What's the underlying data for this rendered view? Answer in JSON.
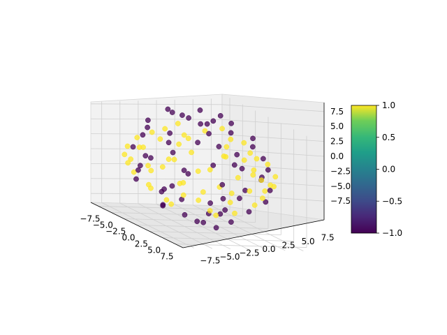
{
  "chart_data": {
    "type": "scatter",
    "projection": "3d",
    "title": "",
    "xlabel": "",
    "ylabel": "",
    "zlabel": "",
    "xlim": [
      -9,
      9
    ],
    "ylim": [
      -9,
      9
    ],
    "zlim": [
      -9,
      9
    ],
    "x_ticks": [
      "−7.5",
      "−5.0",
      "−2.5",
      "0.0",
      "2.5",
      "5.0",
      "7.5"
    ],
    "y_ticks": [
      "−7.5",
      "−5.0",
      "−2.5",
      "0.0",
      "2.5",
      "5.0",
      "7.5"
    ],
    "z_ticks": [
      "−7.5",
      "−5.0",
      "−2.5",
      "0.0",
      "2.5",
      "5.0",
      "7.5"
    ],
    "x_tick_values": [
      -7.5,
      -5,
      -2.5,
      0,
      2.5,
      5,
      7.5
    ],
    "y_tick_values": [
      -7.5,
      -5,
      -2.5,
      0,
      2.5,
      5,
      7.5
    ],
    "z_tick_values": [
      -7.5,
      -5,
      -2.5,
      0,
      2.5,
      5,
      7.5
    ],
    "grid": true,
    "view": {
      "elev": 10,
      "azim": -55
    },
    "colormap": "viridis",
    "colorbar": {
      "range": [
        -1,
        1
      ],
      "ticks": [
        1.0,
        0.5,
        0.0,
        -0.5,
        -1.0
      ],
      "tick_labels": [
        "1.0",
        "0.5",
        "0.0",
        "−0.5",
        "−1.0"
      ]
    },
    "color_values": [
      -1,
      1
    ],
    "colors": {
      "low": "#440154",
      "high": "#fde725"
    },
    "series": [
      {
        "color_value": -1,
        "description_points": [
          [
            -5.2,
            1.1,
            7.8
          ],
          [
            -3.9,
            -2.4,
            8.2
          ],
          [
            -1.2,
            3.3,
            8.6
          ],
          [
            0.8,
            -1.9,
            8.9
          ],
          [
            2.6,
            2.1,
            8.1
          ],
          [
            4.4,
            -0.8,
            7.4
          ],
          [
            -6.1,
            -1.5,
            6.6
          ],
          [
            -4.1,
            4.6,
            6.3
          ],
          [
            -1.8,
            -5.2,
            6.9
          ],
          [
            1.3,
            5.4,
            6.1
          ],
          [
            3.7,
            -4.3,
            6.4
          ],
          [
            5.9,
            1.9,
            5.7
          ],
          [
            -7.2,
            2.5,
            4.1
          ],
          [
            -5.6,
            -4.8,
            3.9
          ],
          [
            -2.7,
            6.3,
            4.4
          ],
          [
            0.4,
            -6.6,
            4.0
          ],
          [
            2.9,
            6.1,
            3.6
          ],
          [
            5.3,
            -4.6,
            3.8
          ],
          [
            7.1,
            0.6,
            3.3
          ],
          [
            -7.6,
            -0.7,
            1.6
          ],
          [
            -6.3,
            5.1,
            1.2
          ],
          [
            -3.4,
            -7.1,
            1.4
          ],
          [
            -0.6,
            7.4,
            1.8
          ],
          [
            2.4,
            -7.3,
            1.1
          ],
          [
            4.8,
            5.9,
            1.5
          ],
          [
            6.9,
            -3.2,
            1.0
          ],
          [
            7.7,
            2.7,
            0.4
          ],
          [
            -7.4,
            1.9,
            -0.9
          ],
          [
            -5.9,
            -5.6,
            -1.3
          ],
          [
            -2.3,
            7.2,
            -1.1
          ],
          [
            0.9,
            -7.5,
            -0.6
          ],
          [
            3.6,
            6.7,
            -1.4
          ],
          [
            6.2,
            -4.9,
            -0.8
          ],
          [
            7.5,
            0.2,
            -1.7
          ],
          [
            -6.8,
            -2.8,
            -3.1
          ],
          [
            -4.7,
            5.8,
            -3.4
          ],
          [
            -1.5,
            -6.9,
            -3.6
          ],
          [
            1.7,
            6.8,
            -3.0
          ],
          [
            4.2,
            -5.7,
            -3.3
          ],
          [
            6.5,
            3.5,
            -2.9
          ],
          [
            -5.5,
            1.4,
            -5.2
          ],
          [
            -3.1,
            -5.0,
            -5.6
          ],
          [
            -0.2,
            5.3,
            -5.9
          ],
          [
            2.8,
            -4.4,
            -5.4
          ],
          [
            4.9,
            2.6,
            -5.1
          ],
          [
            -3.6,
            2.9,
            -7.0
          ],
          [
            -1.1,
            -3.2,
            -7.3
          ],
          [
            1.5,
            1.8,
            -7.6
          ],
          [
            3.3,
            -1.6,
            -6.9
          ],
          [
            0.3,
            0.1,
            -8.2
          ],
          [
            -2.2,
            0.9,
            -8.0
          ],
          [
            2.1,
            -0.4,
            -8.3
          ],
          [
            -4.5,
            -0.3,
            -6.4
          ],
          [
            5.1,
            0.5,
            -4.4
          ],
          [
            -6.6,
            3.9,
            -1.9
          ],
          [
            6.0,
            -1.2,
            2.4
          ],
          [
            -0.9,
            -2.1,
            7.5
          ],
          [
            1.9,
            0.7,
            7.9
          ],
          [
            -3.0,
            -0.2,
            7.2
          ],
          [
            3.9,
            3.4,
            5.6
          ]
        ]
      },
      {
        "color_value": 1,
        "description_points": [
          [
            -7.9,
            3.1,
            0.6
          ],
          [
            -7.3,
            -3.6,
            0.2
          ],
          [
            -6.4,
            6.2,
            -0.1
          ],
          [
            -5.1,
            -6.5,
            0.5
          ],
          [
            -3.2,
            7.6,
            0.3
          ],
          [
            -1.1,
            -7.8,
            -0.2
          ],
          [
            1.2,
            7.9,
            0.1
          ],
          [
            3.4,
            -7.6,
            0.4
          ],
          [
            5.2,
            6.3,
            -0.3
          ],
          [
            6.7,
            -4.6,
            0.2
          ],
          [
            7.6,
            3.0,
            0.0
          ],
          [
            7.9,
            -0.9,
            -0.4
          ],
          [
            -7.7,
            0.4,
            2.1
          ],
          [
            -6.9,
            -2.9,
            2.6
          ],
          [
            -5.8,
            4.9,
            2.9
          ],
          [
            -4.0,
            -6.1,
            2.4
          ],
          [
            -1.9,
            6.8,
            2.7
          ],
          [
            0.6,
            -7.0,
            2.2
          ],
          [
            2.8,
            6.6,
            2.5
          ],
          [
            4.9,
            -5.5,
            2.8
          ],
          [
            6.6,
            3.6,
            2.3
          ],
          [
            7.3,
            -1.8,
            1.9
          ],
          [
            -7.5,
            2.2,
            -2.2
          ],
          [
            -6.7,
            -4.1,
            -2.6
          ],
          [
            -5.0,
            5.9,
            -2.4
          ],
          [
            -2.9,
            -6.9,
            -2.1
          ],
          [
            -0.4,
            7.1,
            -2.7
          ],
          [
            2.2,
            -7.0,
            -2.3
          ],
          [
            4.4,
            5.7,
            -2.5
          ],
          [
            6.3,
            -3.8,
            -2.0
          ],
          [
            7.4,
            1.4,
            -2.4
          ],
          [
            -6.2,
            0.8,
            4.3
          ],
          [
            -4.8,
            -3.7,
            4.6
          ],
          [
            -2.6,
            5.1,
            4.9
          ],
          [
            0.1,
            -5.6,
            4.5
          ],
          [
            2.5,
            5.0,
            4.8
          ],
          [
            4.6,
            -3.3,
            4.4
          ],
          [
            6.1,
            1.1,
            4.2
          ],
          [
            -6.0,
            -1.1,
            -4.4
          ],
          [
            -4.4,
            4.0,
            -4.7
          ],
          [
            -2.0,
            -5.4,
            -4.3
          ],
          [
            0.8,
            5.5,
            -4.6
          ],
          [
            3.2,
            -4.9,
            -4.2
          ],
          [
            5.3,
            2.7,
            -4.5
          ],
          [
            -3.8,
            0.7,
            6.0
          ],
          [
            -1.3,
            -3.6,
            6.2
          ],
          [
            1.4,
            3.5,
            5.9
          ],
          [
            3.5,
            -1.4,
            6.1
          ],
          [
            -3.5,
            -1.9,
            -6.1
          ],
          [
            -0.7,
            3.8,
            -5.8
          ],
          [
            2.0,
            -3.0,
            -6.0
          ],
          [
            3.9,
            0.9,
            -5.7
          ],
          [
            -7.1,
            5.3,
            1.0
          ],
          [
            -7.8,
            -1.6,
            -1.2
          ],
          [
            7.1,
            4.9,
            -1.0
          ],
          [
            7.8,
            -2.6,
            1.3
          ],
          [
            -4.6,
            7.0,
            -0.8
          ],
          [
            4.1,
            -6.9,
            -0.9
          ],
          [
            -2.4,
            -7.4,
            0.9
          ],
          [
            2.6,
            7.3,
            1.2
          ]
        ]
      }
    ]
  }
}
